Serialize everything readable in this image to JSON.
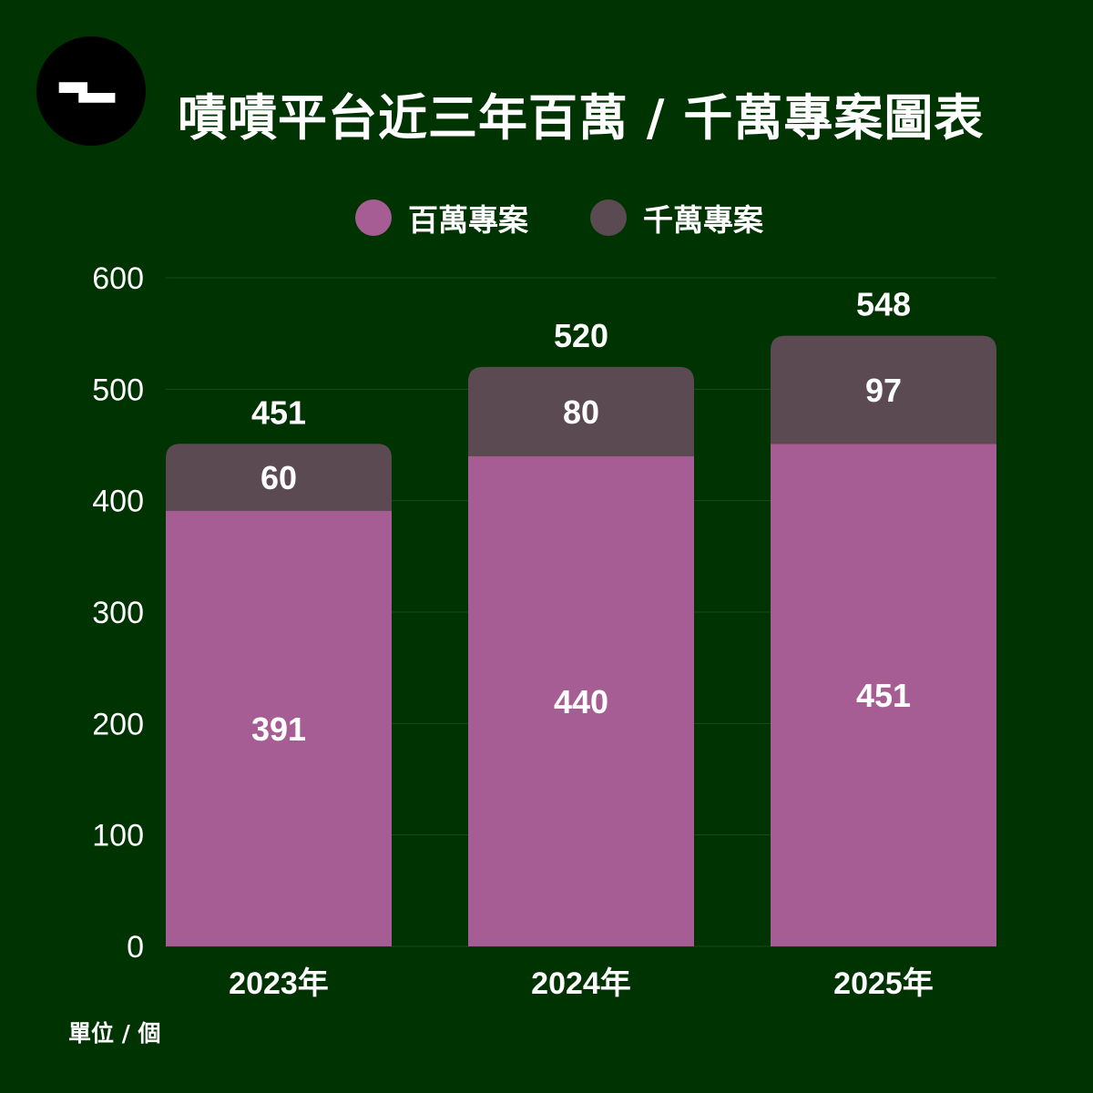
{
  "title": "嘖嘖平台近三年百萬 / 千萬專案圖表",
  "unit_label": "單位 / 個",
  "legend": [
    {
      "label": "百萬專案",
      "color": "#a65d93"
    },
    {
      "label": "千萬專案",
      "color": "#5c4a53"
    }
  ],
  "colors": {
    "background": "#003302",
    "gridline": "#1c4a1b",
    "text": "#ffffff",
    "logo_background": "#000000"
  },
  "chart_data": {
    "type": "bar",
    "stacked": true,
    "categories": [
      "2023年",
      "2024年",
      "2025年"
    ],
    "series": [
      {
        "name": "百萬專案",
        "values": [
          391,
          440,
          451
        ],
        "color": "#a65d93"
      },
      {
        "name": "千萬專案",
        "values": [
          60,
          80,
          97
        ],
        "color": "#5c4a53"
      }
    ],
    "totals": [
      451,
      520,
      548
    ],
    "ylim": [
      0,
      600
    ],
    "yticks": [
      0,
      100,
      200,
      300,
      400,
      500,
      600
    ],
    "grid": true,
    "legend_position": "top-center"
  }
}
